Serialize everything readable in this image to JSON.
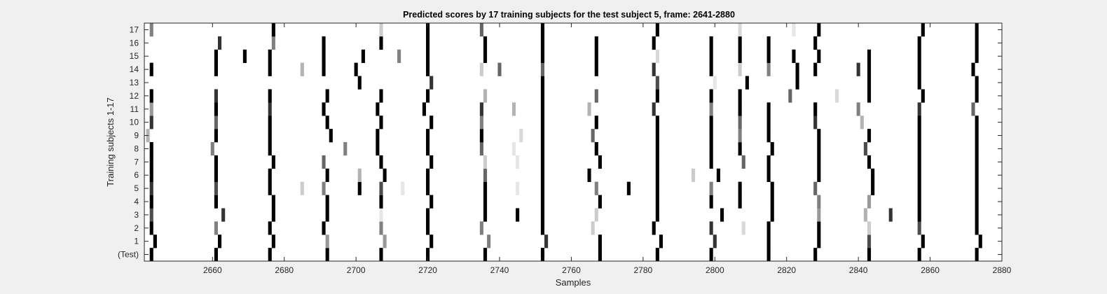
{
  "chart_data": {
    "type": "heatmap",
    "title": "Predicted scores by 17 training subjects for the test subject 5, frame: 2641-2880",
    "xlabel": "Samples",
    "ylabel": "Training subjects 1-17",
    "xlim": [
      2641,
      2880
    ],
    "x_ticks": [
      2660,
      2680,
      2700,
      2720,
      2740,
      2760,
      2780,
      2800,
      2820,
      2840,
      2860,
      2880
    ],
    "y_ticks": [
      "(Test)",
      "1",
      "2",
      "3",
      "4",
      "5",
      "6",
      "7",
      "8",
      "9",
      "10",
      "11",
      "12",
      "13",
      "14",
      "15",
      "16",
      "17"
    ],
    "colormap": "gray (1 = black, 0 = white)",
    "background": "#ffffff",
    "rows": [
      {
        "label": "(Test)",
        "events": [
          [
            2643,
            1
          ],
          [
            2661,
            1
          ],
          [
            2676,
            1
          ],
          [
            2692,
            1
          ],
          [
            2707,
            1
          ],
          [
            2720,
            1
          ],
          [
            2736,
            1
          ],
          [
            2752,
            1
          ],
          [
            2768,
            1
          ],
          [
            2784,
            1
          ],
          [
            2799,
            1
          ],
          [
            2815,
            1
          ],
          [
            2828,
            1
          ],
          [
            2843,
            1
          ],
          [
            2857,
            1
          ],
          [
            2873,
            1
          ]
        ]
      },
      {
        "label": "1",
        "events": [
          [
            2644,
            1
          ],
          [
            2662,
            1
          ],
          [
            2677,
            1
          ],
          [
            2692,
            0.4
          ],
          [
            2708,
            0.4
          ],
          [
            2721,
            1
          ],
          [
            2737,
            0.5
          ],
          [
            2753,
            0.8
          ],
          [
            2768,
            1
          ],
          [
            2785,
            1
          ],
          [
            2800,
            0.8
          ],
          [
            2815,
            1
          ],
          [
            2829,
            1
          ],
          [
            2843,
            0.7
          ],
          [
            2858,
            1
          ],
          [
            2874,
            1
          ]
        ]
      },
      {
        "label": "2",
        "events": [
          [
            2643,
            1
          ],
          [
            2661,
            0.5
          ],
          [
            2676,
            1
          ],
          [
            2691,
            1
          ],
          [
            2707,
            0.5
          ],
          [
            2720,
            1
          ],
          [
            2735,
            0.5
          ],
          [
            2752,
            1
          ],
          [
            2766,
            0.2
          ],
          [
            2783,
            1
          ],
          [
            2799,
            0.8
          ],
          [
            2808,
            0.15
          ],
          [
            2815,
            1
          ],
          [
            2829,
            1
          ],
          [
            2843,
            0.2
          ],
          [
            2857,
            0.7
          ],
          [
            2873,
            1
          ]
        ]
      },
      {
        "label": "3",
        "events": [
          [
            2643,
            0.7
          ],
          [
            2663,
            0.8
          ],
          [
            2677,
            1
          ],
          [
            2692,
            1
          ],
          [
            2707,
            0.1
          ],
          [
            2720,
            1
          ],
          [
            2736,
            1
          ],
          [
            2745,
            1
          ],
          [
            2752,
            1
          ],
          [
            2767,
            0.2
          ],
          [
            2784,
            1
          ],
          [
            2802,
            1
          ],
          [
            2816,
            1
          ],
          [
            2829,
            0.4
          ],
          [
            2842,
            0.3
          ],
          [
            2849,
            0.8
          ],
          [
            2857,
            1
          ],
          [
            2873,
            1
          ]
        ]
      },
      {
        "label": "4",
        "events": [
          [
            2643,
            1
          ],
          [
            2661,
            1
          ],
          [
            2677,
            1
          ],
          [
            2692,
            1
          ],
          [
            2707,
            1
          ],
          [
            2721,
            1
          ],
          [
            2736,
            1
          ],
          [
            2752,
            1
          ],
          [
            2768,
            1
          ],
          [
            2784,
            1
          ],
          [
            2799,
            1
          ],
          [
            2807,
            1
          ],
          [
            2816,
            1
          ],
          [
            2829,
            0.5
          ],
          [
            2843,
            0.4
          ],
          [
            2857,
            1
          ],
          [
            2873,
            1
          ]
        ]
      },
      {
        "label": "5",
        "events": [
          [
            2643,
            0.8
          ],
          [
            2661,
            0.7
          ],
          [
            2676,
            1
          ],
          [
            2685,
            0.2
          ],
          [
            2691,
            0.5
          ],
          [
            2701,
            1
          ],
          [
            2707,
            0.7
          ],
          [
            2713,
            0.1
          ],
          [
            2720,
            1
          ],
          [
            2736,
            1
          ],
          [
            2745,
            0.1
          ],
          [
            2752,
            1
          ],
          [
            2767,
            0.5
          ],
          [
            2776,
            1
          ],
          [
            2784,
            1
          ],
          [
            2799,
            0.5
          ],
          [
            2807,
            1
          ],
          [
            2816,
            1
          ],
          [
            2828,
            0.6
          ],
          [
            2844,
            1
          ],
          [
            2857,
            1
          ],
          [
            2873,
            1
          ]
        ]
      },
      {
        "label": "6",
        "events": [
          [
            2643,
            1
          ],
          [
            2661,
            1
          ],
          [
            2676,
            1
          ],
          [
            2692,
            1
          ],
          [
            2701,
            0.3
          ],
          [
            2708,
            1
          ],
          [
            2720,
            1
          ],
          [
            2736,
            0.6
          ],
          [
            2752,
            1
          ],
          [
            2765,
            1
          ],
          [
            2784,
            1
          ],
          [
            2794,
            0.2
          ],
          [
            2801,
            1
          ],
          [
            2815,
            1
          ],
          [
            2829,
            1
          ],
          [
            2844,
            1
          ],
          [
            2857,
            1
          ],
          [
            2873,
            1
          ]
        ]
      },
      {
        "label": "7",
        "events": [
          [
            2643,
            1
          ],
          [
            2661,
            1
          ],
          [
            2677,
            1
          ],
          [
            2691,
            0.6
          ],
          [
            2707,
            1
          ],
          [
            2721,
            1
          ],
          [
            2736,
            0.2
          ],
          [
            2745,
            0.1
          ],
          [
            2752,
            1
          ],
          [
            2768,
            1
          ],
          [
            2784,
            1
          ],
          [
            2799,
            1
          ],
          [
            2808,
            0.6
          ],
          [
            2815,
            1
          ],
          [
            2829,
            1
          ],
          [
            2843,
            1
          ],
          [
            2857,
            1
          ],
          [
            2873,
            1
          ]
        ]
      },
      {
        "label": "8",
        "events": [
          [
            2643,
            1
          ],
          [
            2660,
            0.5
          ],
          [
            2676,
            1
          ],
          [
            2697,
            0.5
          ],
          [
            2706,
            1
          ],
          [
            2720,
            1
          ],
          [
            2735,
            0.6
          ],
          [
            2744,
            0.1
          ],
          [
            2752,
            1
          ],
          [
            2767,
            1
          ],
          [
            2784,
            1
          ],
          [
            2799,
            1
          ],
          [
            2807,
            1
          ],
          [
            2816,
            1
          ],
          [
            2829,
            1
          ],
          [
            2842,
            0.7
          ],
          [
            2857,
            1
          ],
          [
            2873,
            1
          ]
        ]
      },
      {
        "label": "9",
        "events": [
          [
            2642,
            0.3
          ],
          [
            2661,
            1
          ],
          [
            2676,
            1
          ],
          [
            2693,
            1
          ],
          [
            2706,
            1
          ],
          [
            2720,
            1
          ],
          [
            2735,
            1
          ],
          [
            2746,
            0.15
          ],
          [
            2752,
            1
          ],
          [
            2766,
            0.6
          ],
          [
            2784,
            1
          ],
          [
            2799,
            1
          ],
          [
            2807,
            0.5
          ],
          [
            2815,
            1
          ],
          [
            2829,
            1
          ],
          [
            2843,
            1
          ],
          [
            2857,
            1
          ],
          [
            2873,
            1
          ]
        ]
      },
      {
        "label": "10",
        "events": [
          [
            2643,
            0.8
          ],
          [
            2661,
            0.6
          ],
          [
            2676,
            1
          ],
          [
            2692,
            1
          ],
          [
            2707,
            1
          ],
          [
            2721,
            1
          ],
          [
            2735,
            0.5
          ],
          [
            2752,
            1
          ],
          [
            2767,
            1
          ],
          [
            2784,
            1
          ],
          [
            2799,
            1
          ],
          [
            2807,
            0.6
          ],
          [
            2815,
            1
          ],
          [
            2828,
            0.8
          ],
          [
            2841,
            0.3
          ],
          [
            2857,
            1
          ],
          [
            2873,
            1
          ]
        ]
      },
      {
        "label": "11",
        "events": [
          [
            2643,
            0.4
          ],
          [
            2661,
            1
          ],
          [
            2676,
            0.8
          ],
          [
            2691,
            1
          ],
          [
            2706,
            1
          ],
          [
            2719,
            1
          ],
          [
            2735,
            0.8
          ],
          [
            2744,
            0.3
          ],
          [
            2752,
            1
          ],
          [
            2765,
            0.3
          ],
          [
            2783,
            0.8
          ],
          [
            2799,
            0.5
          ],
          [
            2807,
            1
          ],
          [
            2815,
            1
          ],
          [
            2828,
            1
          ],
          [
            2840,
            0.5
          ],
          [
            2857,
            0.8
          ],
          [
            2872,
            0.6
          ]
        ]
      },
      {
        "label": "12",
        "events": [
          [
            2643,
            1
          ],
          [
            2661,
            0.8
          ],
          [
            2676,
            1
          ],
          [
            2692,
            1
          ],
          [
            2707,
            1
          ],
          [
            2720,
            1
          ],
          [
            2736,
            0.3
          ],
          [
            2752,
            1
          ],
          [
            2767,
            0.6
          ],
          [
            2784,
            1
          ],
          [
            2799,
            1
          ],
          [
            2807,
            1
          ],
          [
            2821,
            0.6
          ],
          [
            2834,
            0.15
          ],
          [
            2843,
            1
          ],
          [
            2858,
            1
          ],
          [
            2873,
            1
          ]
        ]
      },
      {
        "label": "13",
        "events": [
          [
            2701,
            1
          ],
          [
            2721,
            0.8
          ],
          [
            2752,
            1
          ],
          [
            2784,
            0.7
          ],
          [
            2800,
            0.1
          ],
          [
            2809,
            1
          ],
          [
            2823,
            1
          ],
          [
            2843,
            1
          ],
          [
            2857,
            1
          ],
          [
            2873,
            1
          ]
        ]
      },
      {
        "label": "14",
        "events": [
          [
            2643,
            1
          ],
          [
            2661,
            1
          ],
          [
            2676,
            1
          ],
          [
            2685,
            0.3
          ],
          [
            2691,
            1
          ],
          [
            2700,
            1
          ],
          [
            2720,
            1
          ],
          [
            2735,
            0.2
          ],
          [
            2740,
            0.6
          ],
          [
            2752,
            0.6
          ],
          [
            2767,
            1
          ],
          [
            2783,
            0.8
          ],
          [
            2799,
            1
          ],
          [
            2807,
            0.2
          ],
          [
            2815,
            0.5
          ],
          [
            2823,
            1
          ],
          [
            2828,
            1
          ],
          [
            2840,
            0.8
          ],
          [
            2843,
            1
          ],
          [
            2857,
            1
          ],
          [
            2872,
            1
          ]
        ]
      },
      {
        "label": "15",
        "events": [
          [
            2661,
            1
          ],
          [
            2669,
            1
          ],
          [
            2676,
            1
          ],
          [
            2691,
            1
          ],
          [
            2702,
            1
          ],
          [
            2712,
            0.5
          ],
          [
            2720,
            1
          ],
          [
            2736,
            1
          ],
          [
            2752,
            1
          ],
          [
            2767,
            1
          ],
          [
            2784,
            0.15
          ],
          [
            2799,
            1
          ],
          [
            2807,
            1
          ],
          [
            2815,
            1
          ],
          [
            2822,
            1
          ],
          [
            2829,
            1
          ],
          [
            2843,
            1
          ],
          [
            2857,
            1
          ],
          [
            2873,
            1
          ]
        ]
      },
      {
        "label": "16",
        "events": [
          [
            2662,
            0.8
          ],
          [
            2677,
            0.5
          ],
          [
            2691,
            1
          ],
          [
            2707,
            1
          ],
          [
            2720,
            1
          ],
          [
            2736,
            1
          ],
          [
            2752,
            1
          ],
          [
            2767,
            1
          ],
          [
            2783,
            1
          ],
          [
            2799,
            1
          ],
          [
            2807,
            1
          ],
          [
            2815,
            1
          ],
          [
            2828,
            1
          ],
          [
            2857,
            1
          ],
          [
            2873,
            1
          ]
        ]
      },
      {
        "label": "17",
        "events": [
          [
            2643,
            0.5
          ],
          [
            2677,
            1
          ],
          [
            2707,
            0.2
          ],
          [
            2720,
            1
          ],
          [
            2735,
            0.6
          ],
          [
            2752,
            1
          ],
          [
            2784,
            1
          ],
          [
            2807,
            0.15
          ],
          [
            2822,
            0.1
          ],
          [
            2829,
            1
          ],
          [
            2858,
            1
          ],
          [
            2873,
            1
          ]
        ]
      }
    ]
  }
}
